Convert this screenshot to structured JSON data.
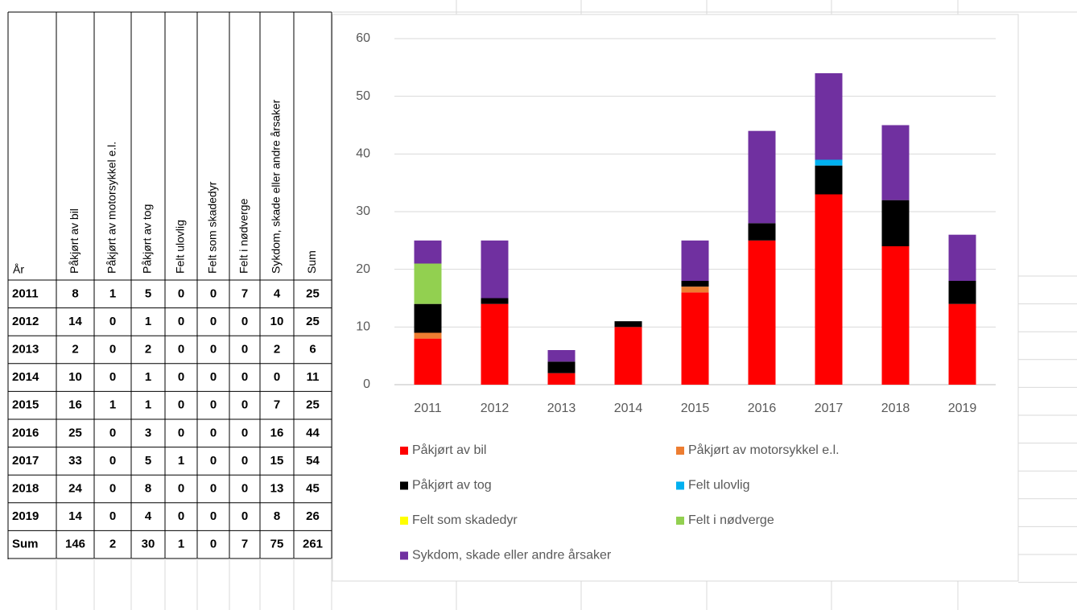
{
  "table": {
    "header": [
      "År",
      "Påkjørt av bil",
      "Påkjørt av motorsykkel e.l.",
      "Påkjørt av tog",
      "Felt ulovlig",
      "Felt som skadedyr",
      "Felt i nødverge",
      "Sykdom, skade eller andre årsaker",
      "Sum"
    ],
    "rows": [
      [
        2011,
        8,
        1,
        5,
        0,
        0,
        7,
        4,
        25
      ],
      [
        2012,
        14,
        0,
        1,
        0,
        0,
        0,
        10,
        25
      ],
      [
        2013,
        2,
        0,
        2,
        0,
        0,
        0,
        2,
        6
      ],
      [
        2014,
        10,
        0,
        1,
        0,
        0,
        0,
        0,
        11
      ],
      [
        2015,
        16,
        1,
        1,
        0,
        0,
        0,
        7,
        25
      ],
      [
        2016,
        25,
        0,
        3,
        0,
        0,
        0,
        16,
        44
      ],
      [
        2017,
        33,
        0,
        5,
        1,
        0,
        0,
        15,
        54
      ],
      [
        2018,
        24,
        0,
        8,
        0,
        0,
        0,
        13,
        45
      ],
      [
        2019,
        14,
        0,
        4,
        0,
        0,
        0,
        8,
        26
      ],
      [
        "Sum",
        146,
        2,
        30,
        1,
        0,
        7,
        75,
        261
      ]
    ]
  },
  "chart_data": {
    "type": "stacked_bar",
    "categories": [
      "2011",
      "2012",
      "2013",
      "2014",
      "2015",
      "2016",
      "2017",
      "2018",
      "2019"
    ],
    "series": [
      {
        "name": "Påkjørt av bil",
        "color": "#ff0000",
        "values": [
          8,
          14,
          2,
          10,
          16,
          25,
          33,
          24,
          14
        ]
      },
      {
        "name": "Påkjørt av motorsykkel e.l.",
        "color": "#ed7d31",
        "values": [
          1,
          0,
          0,
          0,
          1,
          0,
          0,
          0,
          0
        ]
      },
      {
        "name": "Påkjørt av tog",
        "color": "#000000",
        "values": [
          5,
          1,
          2,
          1,
          1,
          3,
          5,
          8,
          4
        ]
      },
      {
        "name": "Felt ulovlig",
        "color": "#00b0f0",
        "values": [
          0,
          0,
          0,
          0,
          0,
          0,
          1,
          0,
          0
        ]
      },
      {
        "name": "Felt som skadedyr",
        "color": "#ffff00",
        "values": [
          0,
          0,
          0,
          0,
          0,
          0,
          0,
          0,
          0
        ]
      },
      {
        "name": "Felt i nødverge",
        "color": "#92d050",
        "values": [
          7,
          0,
          0,
          0,
          0,
          0,
          0,
          0,
          0
        ]
      },
      {
        "name": "Sykdom, skade eller andre årsaker",
        "color": "#7030a0",
        "values": [
          4,
          10,
          2,
          0,
          7,
          16,
          15,
          13,
          8
        ]
      }
    ],
    "ylim": [
      0,
      60
    ],
    "yticks": [
      0,
      10,
      20,
      30,
      40,
      50,
      60
    ],
    "grid": true,
    "legend": "bottom"
  }
}
